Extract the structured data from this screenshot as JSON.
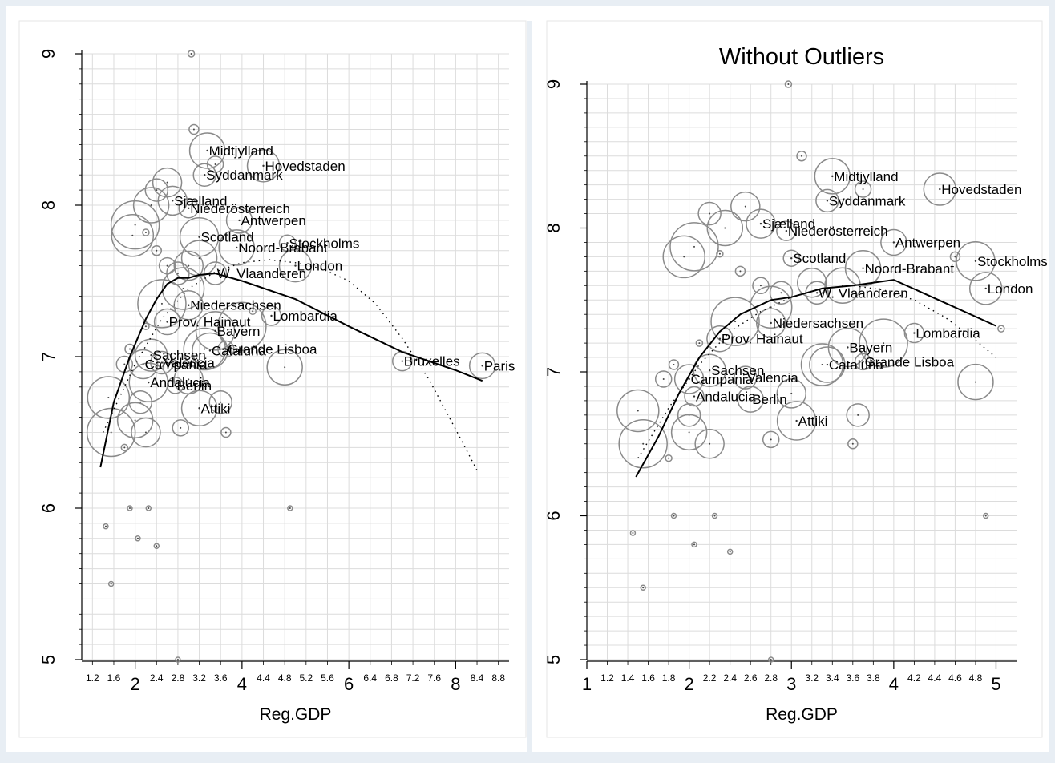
{
  "chart_data": [
    {
      "type": "scatter",
      "title": "",
      "xlabel": "Reg.GDP",
      "ylabel": "",
      "xlim": [
        1.0,
        9.0
      ],
      "ylim": [
        5,
        9
      ],
      "grid": true,
      "x_major_ticks": [
        "2",
        "4",
        "6",
        "8"
      ],
      "x_minor_ticks": [
        "1.2",
        "1.6",
        "2.4",
        "2.8",
        "3.2",
        "3.6",
        "4.4",
        "4.8",
        "5.2",
        "5.6",
        "6.4",
        "6.8",
        "7.2",
        "7.6",
        "8.4",
        "8.8"
      ],
      "y_ticks": [
        "5",
        "6",
        "7",
        "8",
        "9"
      ],
      "labeled_points": [
        {
          "label": "Midtjylland",
          "x": 3.35,
          "y": 8.36
        },
        {
          "label": "Hovedstaden",
          "x": 4.4,
          "y": 8.26
        },
        {
          "label": "Syddanmark",
          "x": 3.3,
          "y": 8.2
        },
        {
          "label": "Sjælland",
          "x": 2.7,
          "y": 8.03
        },
        {
          "label": "Niederösterreich",
          "x": 3.0,
          "y": 7.98
        },
        {
          "label": "Antwerpen",
          "x": 3.95,
          "y": 7.9
        },
        {
          "label": "Scotland",
          "x": 3.2,
          "y": 7.79
        },
        {
          "label": "Stockholms",
          "x": 4.85,
          "y": 7.75
        },
        {
          "label": "Noord-Brabant",
          "x": 3.9,
          "y": 7.72
        },
        {
          "label": "London",
          "x": 5.0,
          "y": 7.6
        },
        {
          "label": "W. Vlaanderen",
          "x": 3.5,
          "y": 7.55
        },
        {
          "label": "Niedersachsen",
          "x": 3.0,
          "y": 7.34
        },
        {
          "label": "Lombardia",
          "x": 4.55,
          "y": 7.27
        },
        {
          "label": "Prov. Hainaut",
          "x": 2.6,
          "y": 7.23
        },
        {
          "label": "Bayern",
          "x": 3.5,
          "y": 7.17
        },
        {
          "label": "Grande Lisboa",
          "x": 3.7,
          "y": 7.05
        },
        {
          "label": "Cataluña",
          "x": 3.4,
          "y": 7.04
        },
        {
          "label": "Sachsen",
          "x": 2.3,
          "y": 7.01
        },
        {
          "label": "Valencia",
          "x": 2.5,
          "y": 6.96
        },
        {
          "label": "Campania",
          "x": 2.15,
          "y": 6.95
        },
        {
          "label": "Bruxelles",
          "x": 7.0,
          "y": 6.97
        },
        {
          "label": "Paris",
          "x": 8.5,
          "y": 6.94
        },
        {
          "label": "Andalucia",
          "x": 2.25,
          "y": 6.83
        },
        {
          "label": "Berlin",
          "x": 2.75,
          "y": 6.81
        },
        {
          "label": "Attiki",
          "x": 3.2,
          "y": 6.66
        }
      ],
      "unlabeled_points": [
        {
          "x": 3.05,
          "y": 9.0
        },
        {
          "x": 3.1,
          "y": 8.5
        },
        {
          "x": 3.5,
          "y": 8.27
        },
        {
          "x": 2.4,
          "y": 8.1
        },
        {
          "x": 2.6,
          "y": 8.15
        },
        {
          "x": 2.3,
          "y": 8.0
        },
        {
          "x": 1.95,
          "y": 7.8
        },
        {
          "x": 2.0,
          "y": 7.87
        },
        {
          "x": 2.2,
          "y": 7.82
        },
        {
          "x": 2.4,
          "y": 7.7
        },
        {
          "x": 2.6,
          "y": 7.6
        },
        {
          "x": 2.8,
          "y": 7.55
        },
        {
          "x": 3.0,
          "y": 7.6
        },
        {
          "x": 3.2,
          "y": 7.65
        },
        {
          "x": 2.9,
          "y": 7.45
        },
        {
          "x": 2.5,
          "y": 7.35
        },
        {
          "x": 2.2,
          "y": 7.2
        },
        {
          "x": 1.9,
          "y": 7.05
        },
        {
          "x": 1.8,
          "y": 6.95
        },
        {
          "x": 2.1,
          "y": 6.7
        },
        {
          "x": 2.2,
          "y": 6.5
        },
        {
          "x": 2.0,
          "y": 6.58
        },
        {
          "x": 1.5,
          "y": 6.73
        },
        {
          "x": 1.55,
          "y": 6.5
        },
        {
          "x": 1.8,
          "y": 6.4
        },
        {
          "x": 3.7,
          "y": 6.5
        },
        {
          "x": 2.85,
          "y": 6.53
        },
        {
          "x": 3.6,
          "y": 6.7
        },
        {
          "x": 3.0,
          "y": 6.85
        },
        {
          "x": 4.8,
          "y": 6.93
        },
        {
          "x": 3.3,
          "y": 7.05
        },
        {
          "x": 4.0,
          "y": 7.2
        },
        {
          "x": 4.2,
          "y": 7.3
        },
        {
          "x": 1.45,
          "y": 5.88
        },
        {
          "x": 1.9,
          "y": 6.0
        },
        {
          "x": 2.25,
          "y": 6.0
        },
        {
          "x": 2.05,
          "y": 5.8
        },
        {
          "x": 2.4,
          "y": 5.75
        },
        {
          "x": 1.55,
          "y": 5.5
        },
        {
          "x": 4.9,
          "y": 6.0
        },
        {
          "x": 2.8,
          "y": 5.0
        }
      ],
      "series": [
        {
          "name": "",
          "style": "solid",
          "x": [
            1.35,
            1.6,
            1.9,
            2.2,
            2.4,
            2.6,
            2.8,
            3.0,
            3.2,
            3.5,
            4.0,
            5.0,
            6.0,
            7.0,
            8.0,
            8.5
          ],
          "y": [
            6.27,
            6.7,
            7.0,
            7.25,
            7.38,
            7.48,
            7.52,
            7.52,
            7.54,
            7.55,
            7.5,
            7.38,
            7.2,
            7.03,
            6.91,
            6.84
          ]
        },
        {
          "name": "",
          "style": "dotted",
          "x": [
            1.4,
            2.0,
            2.5,
            3.0,
            3.5,
            4.0,
            4.5,
            5.0,
            5.5,
            6.0,
            6.5,
            7.0,
            7.5,
            8.0,
            8.4
          ],
          "y": [
            6.5,
            6.95,
            7.25,
            7.45,
            7.56,
            7.62,
            7.64,
            7.62,
            7.58,
            7.5,
            7.35,
            7.12,
            6.85,
            6.52,
            6.25
          ]
        }
      ]
    },
    {
      "type": "scatter",
      "title": "Without Outliers",
      "xlabel": "Reg.GDP",
      "ylabel": "",
      "xlim": [
        1.0,
        5.2
      ],
      "ylim": [
        5,
        9
      ],
      "grid": true,
      "x_major_ticks": [
        "1",
        "2",
        "3",
        "4",
        "5"
      ],
      "x_minor_ticks": [
        "1.2",
        "1.4",
        "1.6",
        "1.8",
        "2.2",
        "2.4",
        "2.6",
        "2.8",
        "3.2",
        "3.4",
        "3.6",
        "3.8",
        "4.2",
        "4.4",
        "4.6",
        "4.8"
      ],
      "y_ticks": [
        "5",
        "6",
        "7",
        "8",
        "9"
      ],
      "labeled_points": [
        {
          "label": "Midtjylland",
          "x": 3.4,
          "y": 8.36
        },
        {
          "label": "Hovedstaden",
          "x": 4.45,
          "y": 8.27
        },
        {
          "label": "Syddanmark",
          "x": 3.35,
          "y": 8.19
        },
        {
          "label": "Sjælland",
          "x": 2.7,
          "y": 8.03
        },
        {
          "label": "Niederösterreich",
          "x": 2.95,
          "y": 7.98
        },
        {
          "label": "Antwerpen",
          "x": 4.0,
          "y": 7.9
        },
        {
          "label": "Stockholms",
          "x": 4.8,
          "y": 7.77
        },
        {
          "label": "Scotland",
          "x": 3.0,
          "y": 7.79
        },
        {
          "label": "Noord-Brabant",
          "x": 3.7,
          "y": 7.72
        },
        {
          "label": "London",
          "x": 4.9,
          "y": 7.58
        },
        {
          "label": "W. Vlaanderen",
          "x": 3.25,
          "y": 7.55
        },
        {
          "label": "Niedersachsen",
          "x": 2.8,
          "y": 7.34
        },
        {
          "label": "Lombardia",
          "x": 4.2,
          "y": 7.27
        },
        {
          "label": "Prov. Hainaut",
          "x": 2.3,
          "y": 7.23
        },
        {
          "label": "Bayern",
          "x": 3.55,
          "y": 7.17
        },
        {
          "label": "Grande Lisboa",
          "x": 3.7,
          "y": 7.07
        },
        {
          "label": "Cataluña",
          "x": 3.35,
          "y": 7.05
        },
        {
          "label": "Sachsen",
          "x": 2.2,
          "y": 7.01
        },
        {
          "label": "Valencia",
          "x": 2.55,
          "y": 6.96
        },
        {
          "label": "Campania",
          "x": 2.0,
          "y": 6.95
        },
        {
          "label": "Andalucia",
          "x": 2.05,
          "y": 6.83
        },
        {
          "label": "Berlin",
          "x": 2.6,
          "y": 6.81
        },
        {
          "label": "Attiki",
          "x": 3.05,
          "y": 6.66
        }
      ],
      "unlabeled_points": [
        {
          "x": 2.97,
          "y": 9.0
        },
        {
          "x": 3.1,
          "y": 8.5
        },
        {
          "x": 3.7,
          "y": 8.27
        },
        {
          "x": 2.2,
          "y": 8.1
        },
        {
          "x": 2.55,
          "y": 8.15
        },
        {
          "x": 2.35,
          "y": 8.0
        },
        {
          "x": 1.95,
          "y": 7.8
        },
        {
          "x": 2.05,
          "y": 7.87
        },
        {
          "x": 2.3,
          "y": 7.82
        },
        {
          "x": 2.5,
          "y": 7.7
        },
        {
          "x": 2.7,
          "y": 7.6
        },
        {
          "x": 2.9,
          "y": 7.55
        },
        {
          "x": 3.2,
          "y": 7.62
        },
        {
          "x": 3.5,
          "y": 7.6
        },
        {
          "x": 2.8,
          "y": 7.45
        },
        {
          "x": 2.45,
          "y": 7.35
        },
        {
          "x": 2.1,
          "y": 7.2
        },
        {
          "x": 1.85,
          "y": 7.05
        },
        {
          "x": 1.75,
          "y": 6.95
        },
        {
          "x": 2.0,
          "y": 6.7
        },
        {
          "x": 2.2,
          "y": 6.5
        },
        {
          "x": 2.0,
          "y": 6.58
        },
        {
          "x": 1.5,
          "y": 6.73
        },
        {
          "x": 1.55,
          "y": 6.5
        },
        {
          "x": 1.8,
          "y": 6.4
        },
        {
          "x": 3.6,
          "y": 6.5
        },
        {
          "x": 2.8,
          "y": 6.53
        },
        {
          "x": 3.65,
          "y": 6.7
        },
        {
          "x": 3.0,
          "y": 6.85
        },
        {
          "x": 4.8,
          "y": 6.93
        },
        {
          "x": 3.3,
          "y": 7.05
        },
        {
          "x": 3.9,
          "y": 7.2
        },
        {
          "x": 5.05,
          "y": 7.3
        },
        {
          "x": 1.45,
          "y": 5.88
        },
        {
          "x": 1.85,
          "y": 6.0
        },
        {
          "x": 2.25,
          "y": 6.0
        },
        {
          "x": 2.05,
          "y": 5.8
        },
        {
          "x": 2.4,
          "y": 5.75
        },
        {
          "x": 1.55,
          "y": 5.5
        },
        {
          "x": 4.9,
          "y": 6.0
        },
        {
          "x": 2.8,
          "y": 5.0
        },
        {
          "x": 4.6,
          "y": 7.8
        }
      ],
      "series": [
        {
          "name": "",
          "style": "solid",
          "x": [
            1.48,
            1.7,
            1.9,
            2.1,
            2.3,
            2.5,
            2.8,
            3.0,
            3.3,
            3.6,
            4.0,
            4.5,
            5.0
          ],
          "y": [
            6.27,
            6.55,
            6.85,
            7.1,
            7.28,
            7.4,
            7.5,
            7.52,
            7.58,
            7.6,
            7.64,
            7.48,
            7.32
          ]
        },
        {
          "name": "",
          "style": "dotted",
          "x": [
            1.5,
            1.8,
            2.1,
            2.4,
            2.7,
            3.0,
            3.3,
            3.6,
            3.9,
            4.2,
            4.5,
            4.8,
            5.0
          ],
          "y": [
            6.4,
            6.75,
            7.05,
            7.28,
            7.42,
            7.52,
            7.58,
            7.6,
            7.57,
            7.5,
            7.38,
            7.22,
            7.1
          ]
        }
      ]
    }
  ]
}
